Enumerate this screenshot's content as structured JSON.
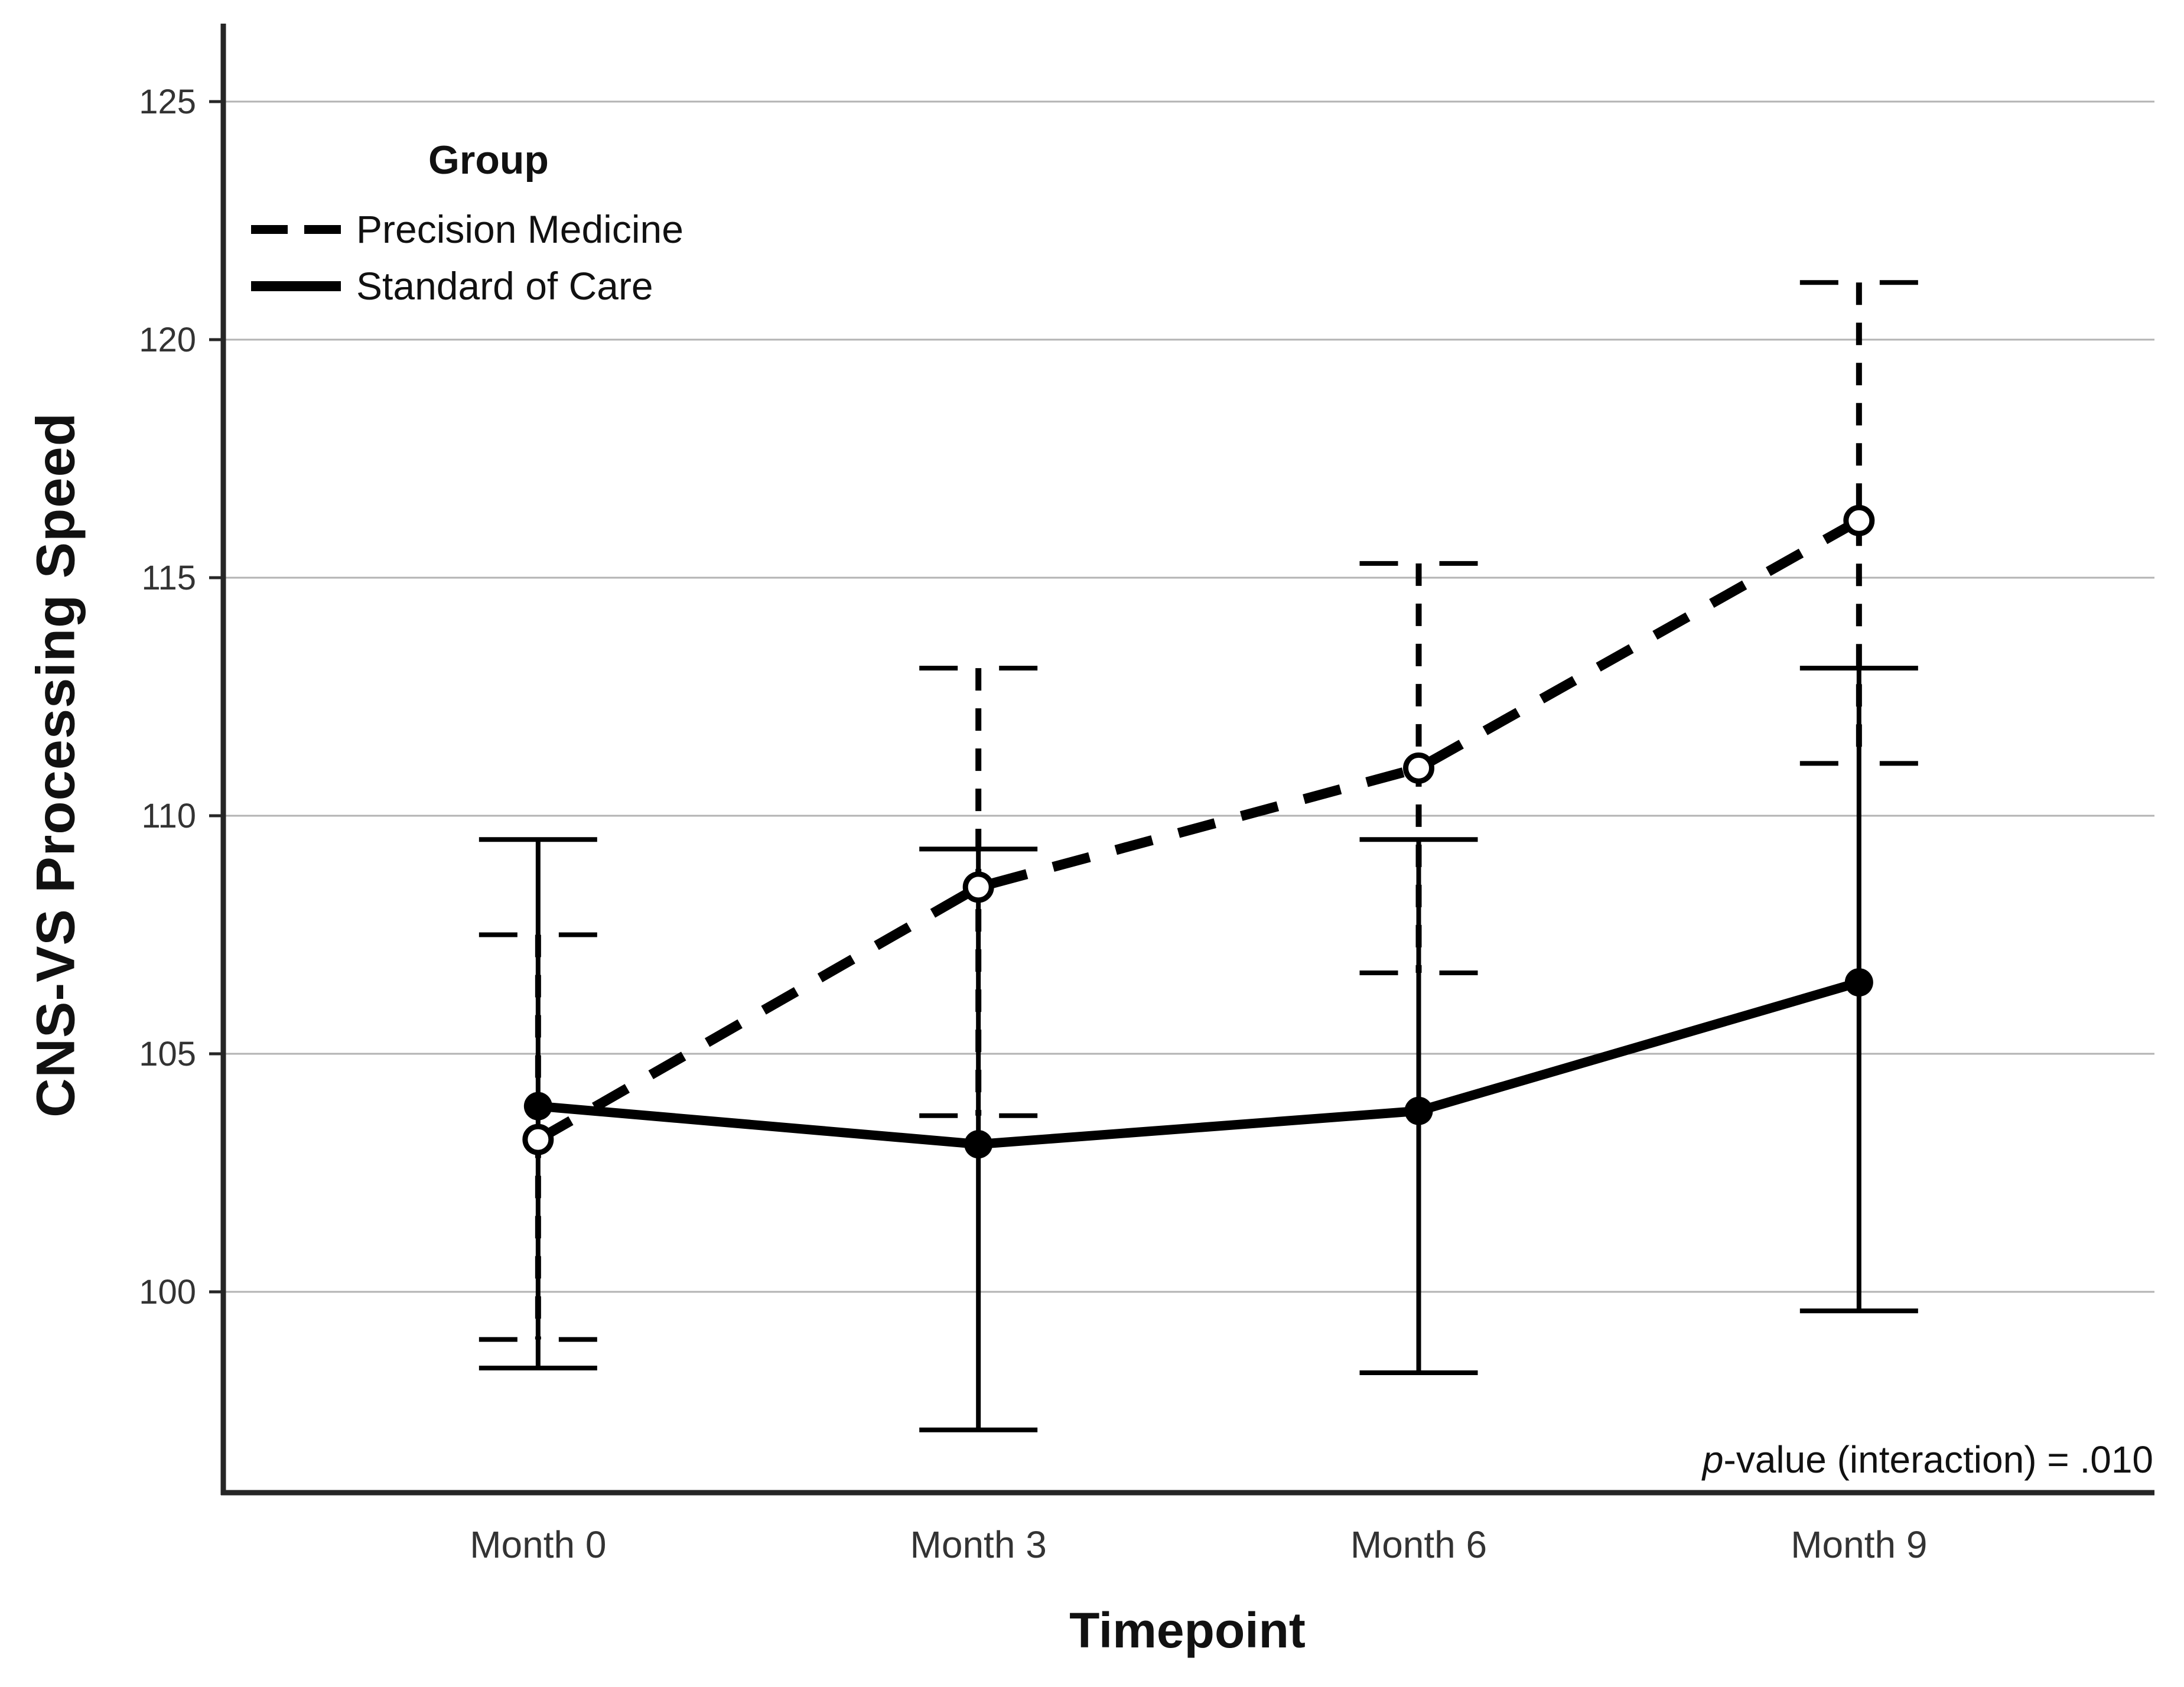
{
  "figure": {
    "background": "#ffffff",
    "text_color": "#111111",
    "tick_text_color": "#333333",
    "grid_color": "#b3b3b3",
    "axis_color": "#262626",
    "series_color": "#000000"
  },
  "chart_data": {
    "type": "line",
    "title": "",
    "xlabel": "Timepoint",
    "ylabel": "CNS-VS Processing Speed",
    "categories": [
      "Month 0",
      "Month 3",
      "Month 6",
      "Month 9"
    ],
    "y_ticks": [
      100,
      105,
      110,
      115,
      120,
      125
    ],
    "ylim": [
      95.8,
      126.6
    ],
    "grid": "horizontal",
    "legend": {
      "title": "Group",
      "position": "top-left"
    },
    "series": [
      {
        "name": "Precision Medicine",
        "line_style": "dashed",
        "marker": "open-circle",
        "values": [
          103.2,
          108.5,
          111.0,
          116.2
        ],
        "ci_low": [
          99.0,
          103.7,
          106.7,
          111.1
        ],
        "ci_high": [
          107.5,
          113.1,
          115.3,
          121.2
        ]
      },
      {
        "name": "Standard of Care",
        "line_style": "solid",
        "marker": "filled-circle",
        "values": [
          103.9,
          103.1,
          103.8,
          106.5
        ],
        "ci_low": [
          98.4,
          97.1,
          98.3,
          99.6
        ],
        "ci_high": [
          109.5,
          109.3,
          109.5,
          113.1
        ]
      }
    ],
    "error_bar_style": "whiskers-with-caps",
    "annotation": {
      "p_label": "p",
      "text_rest": "-value (interaction) = .010",
      "value": ".010"
    }
  }
}
